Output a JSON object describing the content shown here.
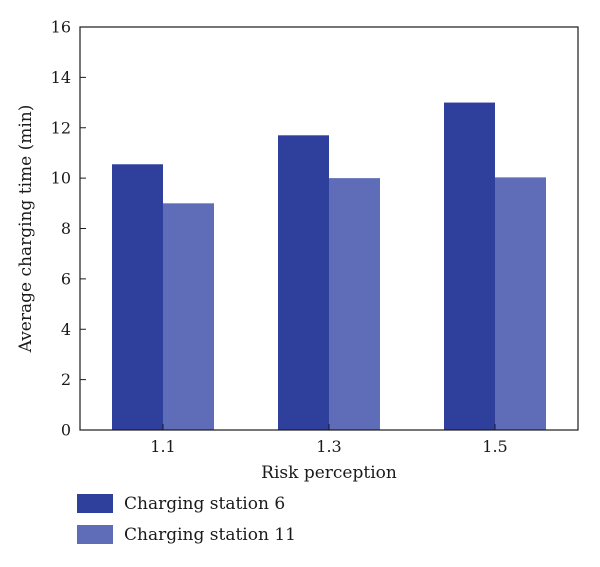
{
  "chart_data": {
    "type": "bar",
    "categories": [
      "1.1",
      "1.3",
      "1.5"
    ],
    "series": [
      {
        "name": "Charging station 6",
        "values": [
          10.55,
          11.7,
          13.0
        ],
        "color": "#2e3f9c"
      },
      {
        "name": "Charging station 11",
        "values": [
          9.0,
          10.0,
          10.03
        ],
        "color": "#5f6db8"
      }
    ],
    "xlabel": "Risk perception",
    "ylabel": "Average charging time (min)",
    "ylim": [
      0,
      16
    ],
    "yticks": [
      "0",
      "2",
      "4",
      "6",
      "8",
      "10",
      "12",
      "14",
      "16"
    ],
    "grid": false,
    "legend_position": "bottom-left"
  }
}
